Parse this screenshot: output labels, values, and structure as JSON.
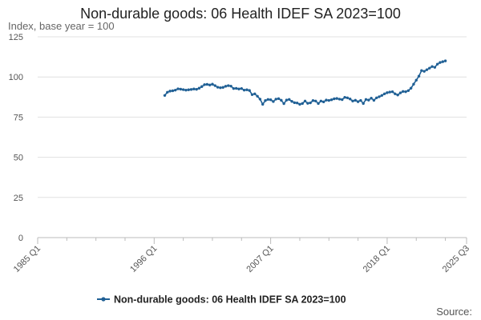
{
  "chart_data": {
    "type": "line",
    "title": "Non-durable goods: 06 Health IDEF SA 2023=100",
    "ylabel": "Index, base year = 100",
    "xlabel": "",
    "ylim": [
      0,
      125
    ],
    "yticks": [
      0,
      25,
      50,
      75,
      100,
      125
    ],
    "xlim": [
      1985.0,
      2025.5
    ],
    "xticks": [
      {
        "label": "1985 Q1",
        "value": 1985.0
      },
      {
        "label": "1996 Q1",
        "value": 1996.0
      },
      {
        "label": "2007 Q1",
        "value": 2007.0
      },
      {
        "label": "2018 Q1",
        "value": 2018.0
      },
      {
        "label": "2025 Q3",
        "value": 2025.5
      }
    ],
    "minor_xticks": [
      1987.75,
      1990.5,
      1993.25,
      1998.75,
      2001.5,
      2004.25,
      2009.75,
      2012.5,
      2015.25,
      2020.75,
      2023.5
    ],
    "grid": true,
    "legend_position": "bottom",
    "color": "#206095",
    "source": "Source:",
    "series": [
      {
        "name": "Non-durable goods: 06 Health IDEF SA 2023=100",
        "points": [
          [
            1997.0,
            88.5
          ],
          [
            1997.25,
            90.5
          ],
          [
            1997.5,
            91.2
          ],
          [
            1997.75,
            91.4
          ],
          [
            1998.0,
            91.8
          ],
          [
            1998.25,
            92.6
          ],
          [
            1998.5,
            92.4
          ],
          [
            1998.75,
            92.1
          ],
          [
            1999.0,
            91.8
          ],
          [
            1999.25,
            92.0
          ],
          [
            1999.5,
            92.2
          ],
          [
            1999.75,
            92.5
          ],
          [
            2000.0,
            92.3
          ],
          [
            2000.25,
            93.0
          ],
          [
            2000.5,
            94.0
          ],
          [
            2000.75,
            95.2
          ],
          [
            2001.0,
            95.4
          ],
          [
            2001.25,
            95.0
          ],
          [
            2001.5,
            95.5
          ],
          [
            2001.75,
            94.6
          ],
          [
            2002.0,
            93.6
          ],
          [
            2002.25,
            93.3
          ],
          [
            2002.5,
            93.5
          ],
          [
            2002.75,
            94.2
          ],
          [
            2003.0,
            94.6
          ],
          [
            2003.25,
            94.3
          ],
          [
            2003.5,
            92.8
          ],
          [
            2003.75,
            92.9
          ],
          [
            2004.0,
            92.5
          ],
          [
            2004.25,
            92.8
          ],
          [
            2004.5,
            91.8
          ],
          [
            2004.75,
            92.0
          ],
          [
            2005.0,
            91.6
          ],
          [
            2005.25,
            89.0
          ],
          [
            2005.5,
            89.5
          ],
          [
            2005.75,
            88.0
          ],
          [
            2006.0,
            86.2
          ],
          [
            2006.25,
            83.0
          ],
          [
            2006.5,
            85.3
          ],
          [
            2006.75,
            86.0
          ],
          [
            2007.0,
            85.8
          ],
          [
            2007.25,
            84.7
          ],
          [
            2007.5,
            86.2
          ],
          [
            2007.75,
            86.5
          ],
          [
            2008.0,
            85.5
          ],
          [
            2008.25,
            83.4
          ],
          [
            2008.5,
            85.6
          ],
          [
            2008.75,
            86.0
          ],
          [
            2009.0,
            84.8
          ],
          [
            2009.25,
            84.0
          ],
          [
            2009.5,
            83.8
          ],
          [
            2009.75,
            83.0
          ],
          [
            2010.0,
            83.5
          ],
          [
            2010.25,
            85.0
          ],
          [
            2010.5,
            83.6
          ],
          [
            2010.75,
            83.9
          ],
          [
            2011.0,
            85.3
          ],
          [
            2011.25,
            85.0
          ],
          [
            2011.5,
            83.5
          ],
          [
            2011.75,
            85.0
          ],
          [
            2012.0,
            84.5
          ],
          [
            2012.25,
            85.6
          ],
          [
            2012.5,
            85.4
          ],
          [
            2012.75,
            85.8
          ],
          [
            2013.0,
            86.4
          ],
          [
            2013.25,
            86.6
          ],
          [
            2013.5,
            86.2
          ],
          [
            2013.75,
            85.9
          ],
          [
            2014.0,
            87.3
          ],
          [
            2014.25,
            87.0
          ],
          [
            2014.5,
            86.3
          ],
          [
            2014.75,
            85.0
          ],
          [
            2015.0,
            85.5
          ],
          [
            2015.25,
            84.6
          ],
          [
            2015.5,
            85.4
          ],
          [
            2015.75,
            83.5
          ],
          [
            2016.0,
            86.0
          ],
          [
            2016.25,
            85.6
          ],
          [
            2016.5,
            86.8
          ],
          [
            2016.75,
            85.5
          ],
          [
            2017.0,
            87.0
          ],
          [
            2017.25,
            87.7
          ],
          [
            2017.5,
            88.5
          ],
          [
            2017.75,
            89.5
          ],
          [
            2018.0,
            90.2
          ],
          [
            2018.25,
            90.6
          ],
          [
            2018.5,
            90.8
          ],
          [
            2018.75,
            89.5
          ],
          [
            2019.0,
            88.8
          ],
          [
            2019.25,
            90.1
          ],
          [
            2019.5,
            91.0
          ],
          [
            2019.75,
            90.8
          ],
          [
            2020.0,
            91.5
          ],
          [
            2020.25,
            93.0
          ],
          [
            2020.5,
            95.5
          ],
          [
            2020.75,
            98.0
          ],
          [
            2021.0,
            100.5
          ],
          [
            2021.25,
            104.0
          ],
          [
            2021.5,
            103.5
          ],
          [
            2021.75,
            104.5
          ],
          [
            2022.0,
            105.5
          ],
          [
            2022.25,
            106.5
          ],
          [
            2022.5,
            106.0
          ],
          [
            2022.75,
            108.0
          ],
          [
            2023.0,
            109.0
          ],
          [
            2023.25,
            109.5
          ],
          [
            2023.5,
            110.0
          ]
        ]
      }
    ]
  }
}
